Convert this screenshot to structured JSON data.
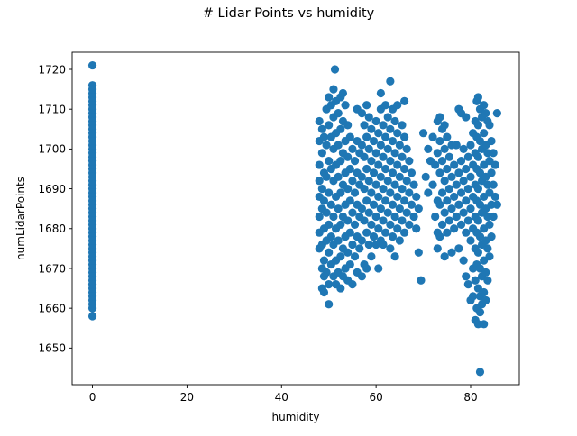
{
  "chart_data": {
    "type": "scatter",
    "title": "# Lidar Points vs humidity",
    "xlabel": "humidity",
    "ylabel": "numLidarPoints",
    "xlim": [
      -4.3,
      90.3
    ],
    "ylim": [
      1640.8,
      1724.3
    ],
    "xticks": [
      0,
      20,
      40,
      60,
      80
    ],
    "yticks": [
      1650,
      1660,
      1670,
      1680,
      1690,
      1700,
      1710,
      1720
    ],
    "color": "#1f77b4",
    "grid": false,
    "legend": "none",
    "points": [
      [
        0,
        1721
      ],
      [
        0,
        1716
      ],
      [
        0,
        1715
      ],
      [
        0,
        1714
      ],
      [
        0,
        1713
      ],
      [
        0,
        1712
      ],
      [
        0,
        1711
      ],
      [
        0,
        1710
      ],
      [
        0,
        1709
      ],
      [
        0,
        1708
      ],
      [
        0,
        1707
      ],
      [
        0,
        1706
      ],
      [
        0,
        1705
      ],
      [
        0,
        1704
      ],
      [
        0,
        1703
      ],
      [
        0,
        1702
      ],
      [
        0,
        1701
      ],
      [
        0,
        1700
      ],
      [
        0,
        1699
      ],
      [
        0,
        1698
      ],
      [
        0,
        1697
      ],
      [
        0,
        1696
      ],
      [
        0,
        1695
      ],
      [
        0,
        1694
      ],
      [
        0,
        1693
      ],
      [
        0,
        1692
      ],
      [
        0,
        1691
      ],
      [
        0,
        1690
      ],
      [
        0,
        1689
      ],
      [
        0,
        1688
      ],
      [
        0,
        1687
      ],
      [
        0,
        1686
      ],
      [
        0,
        1685
      ],
      [
        0,
        1684
      ],
      [
        0,
        1683
      ],
      [
        0,
        1682
      ],
      [
        0,
        1681
      ],
      [
        0,
        1680
      ],
      [
        0,
        1679
      ],
      [
        0,
        1678
      ],
      [
        0,
        1677
      ],
      [
        0,
        1676
      ],
      [
        0,
        1675
      ],
      [
        0,
        1674
      ],
      [
        0,
        1673
      ],
      [
        0,
        1672
      ],
      [
        0,
        1671
      ],
      [
        0,
        1670
      ],
      [
        0,
        1669
      ],
      [
        0,
        1668
      ],
      [
        0,
        1667
      ],
      [
        0,
        1666
      ],
      [
        0,
        1665
      ],
      [
        0,
        1664
      ],
      [
        0,
        1663
      ],
      [
        0,
        1662
      ],
      [
        0,
        1661
      ],
      [
        0,
        1660
      ],
      [
        0,
        1658
      ],
      [
        48,
        1707
      ],
      [
        48,
        1702
      ],
      [
        48,
        1696
      ],
      [
        48,
        1692
      ],
      [
        48,
        1688
      ],
      [
        48,
        1683
      ],
      [
        48,
        1679
      ],
      [
        48,
        1675
      ],
      [
        48.6,
        1705
      ],
      [
        48.6,
        1699
      ],
      [
        48.6,
        1690
      ],
      [
        48.6,
        1685
      ],
      [
        48.6,
        1676
      ],
      [
        48.6,
        1670
      ],
      [
        48.6,
        1665
      ],
      [
        49,
        1703
      ],
      [
        49,
        1694
      ],
      [
        49,
        1687
      ],
      [
        49,
        1680
      ],
      [
        49,
        1672
      ],
      [
        49,
        1668
      ],
      [
        49,
        1664
      ],
      [
        49.5,
        1710
      ],
      [
        49.5,
        1701
      ],
      [
        49.5,
        1693
      ],
      [
        49.5,
        1684
      ],
      [
        49.5,
        1677
      ],
      [
        49.5,
        1669
      ],
      [
        50,
        1713
      ],
      [
        50,
        1706
      ],
      [
        50,
        1697
      ],
      [
        50,
        1689
      ],
      [
        50,
        1681
      ],
      [
        50,
        1674
      ],
      [
        50,
        1666
      ],
      [
        50,
        1661
      ],
      [
        50.5,
        1711
      ],
      [
        50.5,
        1703
      ],
      [
        50.5,
        1695
      ],
      [
        50.5,
        1686
      ],
      [
        50.5,
        1678
      ],
      [
        50.5,
        1671
      ],
      [
        51,
        1715
      ],
      [
        51,
        1708
      ],
      [
        51,
        1700
      ],
      [
        51,
        1692
      ],
      [
        51,
        1683
      ],
      [
        51,
        1676
      ],
      [
        51,
        1668
      ],
      [
        51.3,
        1720
      ],
      [
        51.5,
        1712
      ],
      [
        51.5,
        1704
      ],
      [
        51.5,
        1696
      ],
      [
        51.5,
        1688
      ],
      [
        51.5,
        1680
      ],
      [
        51.5,
        1672
      ],
      [
        51.5,
        1666
      ],
      [
        52,
        1709
      ],
      [
        52,
        1701
      ],
      [
        52,
        1693
      ],
      [
        52,
        1685
      ],
      [
        52,
        1677
      ],
      [
        52,
        1669
      ],
      [
        52.5,
        1713
      ],
      [
        52.5,
        1705
      ],
      [
        52.5,
        1697
      ],
      [
        52.5,
        1689
      ],
      [
        52.5,
        1681
      ],
      [
        52.5,
        1673
      ],
      [
        52.5,
        1665
      ],
      [
        53,
        1714
      ],
      [
        53,
        1707
      ],
      [
        53,
        1699
      ],
      [
        53,
        1691
      ],
      [
        53,
        1683
      ],
      [
        53,
        1675
      ],
      [
        53,
        1668
      ],
      [
        53.5,
        1711
      ],
      [
        53.5,
        1702
      ],
      [
        53.5,
        1694
      ],
      [
        53.5,
        1686
      ],
      [
        53.5,
        1678
      ],
      [
        53.5,
        1670
      ],
      [
        54,
        1706
      ],
      [
        54,
        1698
      ],
      [
        54,
        1690
      ],
      [
        54,
        1682
      ],
      [
        54,
        1674
      ],
      [
        54,
        1667
      ],
      [
        54.5,
        1703
      ],
      [
        54.5,
        1695
      ],
      [
        54.5,
        1687
      ],
      [
        54.5,
        1679
      ],
      [
        54.5,
        1671
      ],
      [
        55,
        1700
      ],
      [
        55,
        1692
      ],
      [
        55,
        1684
      ],
      [
        55,
        1676
      ],
      [
        55,
        1666
      ],
      [
        55.5,
        1697
      ],
      [
        55.5,
        1689
      ],
      [
        55.5,
        1681
      ],
      [
        55.5,
        1673
      ],
      [
        56,
        1710
      ],
      [
        56,
        1702
      ],
      [
        56,
        1694
      ],
      [
        56,
        1686
      ],
      [
        56,
        1678
      ],
      [
        56,
        1669
      ],
      [
        56.5,
        1699
      ],
      [
        56.5,
        1691
      ],
      [
        56.5,
        1683
      ],
      [
        56.5,
        1675
      ],
      [
        57,
        1709
      ],
      [
        57,
        1701
      ],
      [
        57,
        1693
      ],
      [
        57,
        1685
      ],
      [
        57,
        1677
      ],
      [
        57,
        1668
      ],
      [
        57.5,
        1706
      ],
      [
        57.5,
        1698
      ],
      [
        57.5,
        1690
      ],
      [
        57.5,
        1682
      ],
      [
        57.5,
        1671
      ],
      [
        58,
        1711
      ],
      [
        58,
        1703
      ],
      [
        58,
        1695
      ],
      [
        58,
        1687
      ],
      [
        58,
        1679
      ],
      [
        58,
        1670
      ],
      [
        58.5,
        1708
      ],
      [
        58.5,
        1700
      ],
      [
        58.5,
        1692
      ],
      [
        58.5,
        1684
      ],
      [
        58.5,
        1676
      ],
      [
        59,
        1705
      ],
      [
        59,
        1697
      ],
      [
        59,
        1689
      ],
      [
        59,
        1681
      ],
      [
        59,
        1673
      ],
      [
        59.5,
        1702
      ],
      [
        59.5,
        1694
      ],
      [
        59.5,
        1686
      ],
      [
        59.5,
        1678
      ],
      [
        60,
        1707
      ],
      [
        60,
        1699
      ],
      [
        60,
        1691
      ],
      [
        60,
        1683
      ],
      [
        60,
        1676
      ],
      [
        60.5,
        1704
      ],
      [
        60.5,
        1696
      ],
      [
        60.5,
        1688
      ],
      [
        60.5,
        1680
      ],
      [
        60.5,
        1670
      ],
      [
        61,
        1714
      ],
      [
        61,
        1710
      ],
      [
        61,
        1701
      ],
      [
        61,
        1693
      ],
      [
        61,
        1685
      ],
      [
        61,
        1677
      ],
      [
        61.5,
        1706
      ],
      [
        61.5,
        1698
      ],
      [
        61.5,
        1690
      ],
      [
        61.5,
        1682
      ],
      [
        61.5,
        1676
      ],
      [
        62,
        1711
      ],
      [
        62,
        1703
      ],
      [
        62,
        1695
      ],
      [
        62,
        1687
      ],
      [
        62,
        1679
      ],
      [
        62.5,
        1708
      ],
      [
        62.5,
        1700
      ],
      [
        62.5,
        1692
      ],
      [
        62.5,
        1684
      ],
      [
        63,
        1717
      ],
      [
        63,
        1705
      ],
      [
        63,
        1697
      ],
      [
        63,
        1689
      ],
      [
        63,
        1681
      ],
      [
        63,
        1675
      ],
      [
        63.5,
        1710
      ],
      [
        63.5,
        1702
      ],
      [
        63.5,
        1694
      ],
      [
        63.5,
        1686
      ],
      [
        63.5,
        1678
      ],
      [
        64,
        1707
      ],
      [
        64,
        1699
      ],
      [
        64,
        1691
      ],
      [
        64,
        1683
      ],
      [
        64,
        1673
      ],
      [
        64.5,
        1711
      ],
      [
        64.5,
        1704
      ],
      [
        64.5,
        1696
      ],
      [
        64.5,
        1688
      ],
      [
        64.5,
        1680
      ],
      [
        65,
        1701
      ],
      [
        65,
        1693
      ],
      [
        65,
        1685
      ],
      [
        65,
        1677
      ],
      [
        65.5,
        1706
      ],
      [
        65.5,
        1698
      ],
      [
        65.5,
        1690
      ],
      [
        65.5,
        1682
      ],
      [
        66,
        1712
      ],
      [
        66,
        1703
      ],
      [
        66,
        1695
      ],
      [
        66,
        1687
      ],
      [
        66,
        1679
      ],
      [
        66.5,
        1700
      ],
      [
        66.5,
        1692
      ],
      [
        66.5,
        1684
      ],
      [
        67,
        1697
      ],
      [
        67,
        1689
      ],
      [
        67,
        1681
      ],
      [
        67.5,
        1694
      ],
      [
        67.5,
        1686
      ],
      [
        68,
        1691
      ],
      [
        68,
        1683
      ],
      [
        68.5,
        1688
      ],
      [
        68.5,
        1680
      ],
      [
        69,
        1685
      ],
      [
        69,
        1674
      ],
      [
        69.5,
        1667
      ],
      [
        70,
        1704
      ],
      [
        70.5,
        1693
      ],
      [
        71,
        1689
      ],
      [
        71,
        1700
      ],
      [
        71.5,
        1697
      ],
      [
        72,
        1691
      ],
      [
        72,
        1703
      ],
      [
        72.5,
        1696
      ],
      [
        72.5,
        1683
      ],
      [
        73,
        1707
      ],
      [
        73,
        1699
      ],
      [
        73,
        1687
      ],
      [
        73,
        1679
      ],
      [
        73,
        1675
      ],
      [
        73.5,
        1708
      ],
      [
        73.5,
        1702
      ],
      [
        73.5,
        1694
      ],
      [
        73.5,
        1686
      ],
      [
        73.5,
        1678
      ],
      [
        74,
        1705
      ],
      [
        74,
        1697
      ],
      [
        74,
        1689
      ],
      [
        74,
        1681
      ],
      [
        74.5,
        1706
      ],
      [
        74.5,
        1700
      ],
      [
        74.5,
        1692
      ],
      [
        74.5,
        1684
      ],
      [
        74.5,
        1673
      ],
      [
        75,
        1703
      ],
      [
        75,
        1695
      ],
      [
        75,
        1687
      ],
      [
        75,
        1679
      ],
      [
        75.5,
        1698
      ],
      [
        75.5,
        1690
      ],
      [
        75.5,
        1682
      ],
      [
        76,
        1701
      ],
      [
        76,
        1693
      ],
      [
        76,
        1685
      ],
      [
        76,
        1674
      ],
      [
        76.5,
        1696
      ],
      [
        76.5,
        1688
      ],
      [
        76.5,
        1680
      ],
      [
        77,
        1701
      ],
      [
        77,
        1691
      ],
      [
        77,
        1683
      ],
      [
        77.5,
        1710
      ],
      [
        77.5,
        1694
      ],
      [
        77.5,
        1686
      ],
      [
        77.5,
        1675
      ],
      [
        78,
        1709
      ],
      [
        78,
        1697
      ],
      [
        78,
        1689
      ],
      [
        78,
        1681
      ],
      [
        78.5,
        1700
      ],
      [
        78.5,
        1692
      ],
      [
        78.5,
        1684
      ],
      [
        78.5,
        1672
      ],
      [
        79,
        1708
      ],
      [
        79,
        1695
      ],
      [
        79,
        1687
      ],
      [
        79,
        1679
      ],
      [
        79,
        1668
      ],
      [
        79.5,
        1698
      ],
      [
        79.5,
        1690
      ],
      [
        79.5,
        1682
      ],
      [
        79.5,
        1666
      ],
      [
        80,
        1701
      ],
      [
        80,
        1693
      ],
      [
        80,
        1685
      ],
      [
        80,
        1677
      ],
      [
        80,
        1662
      ],
      [
        80.5,
        1704
      ],
      [
        80.5,
        1696
      ],
      [
        80.5,
        1688
      ],
      [
        80.5,
        1680
      ],
      [
        80.5,
        1670
      ],
      [
        80.5,
        1663
      ],
      [
        81,
        1707
      ],
      [
        81,
        1699
      ],
      [
        81,
        1691
      ],
      [
        81,
        1683
      ],
      [
        81,
        1675
      ],
      [
        81,
        1667
      ],
      [
        81,
        1657
      ],
      [
        81.3,
        1712
      ],
      [
        81.3,
        1703
      ],
      [
        81.3,
        1695
      ],
      [
        81.3,
        1687
      ],
      [
        81.3,
        1679
      ],
      [
        81.3,
        1671
      ],
      [
        81.3,
        1660
      ],
      [
        81.6,
        1713
      ],
      [
        81.6,
        1706
      ],
      [
        81.6,
        1698
      ],
      [
        81.6,
        1690
      ],
      [
        81.6,
        1682
      ],
      [
        81.6,
        1674
      ],
      [
        81.6,
        1665
      ],
      [
        81.6,
        1656
      ],
      [
        82,
        1710
      ],
      [
        82,
        1702
      ],
      [
        82,
        1694
      ],
      [
        82,
        1686
      ],
      [
        82,
        1678
      ],
      [
        82,
        1670
      ],
      [
        82,
        1663
      ],
      [
        82,
        1659
      ],
      [
        82,
        1644
      ],
      [
        82.4,
        1708
      ],
      [
        82.4,
        1700
      ],
      [
        82.4,
        1692
      ],
      [
        82.4,
        1684
      ],
      [
        82.4,
        1676
      ],
      [
        82.4,
        1668
      ],
      [
        82.4,
        1661
      ],
      [
        82.8,
        1711
      ],
      [
        82.8,
        1704
      ],
      [
        82.8,
        1696
      ],
      [
        82.8,
        1688
      ],
      [
        82.8,
        1680
      ],
      [
        82.8,
        1672
      ],
      [
        82.8,
        1664
      ],
      [
        82.8,
        1656
      ],
      [
        83.2,
        1709
      ],
      [
        83.2,
        1701
      ],
      [
        83.2,
        1693
      ],
      [
        83.2,
        1685
      ],
      [
        83.2,
        1677
      ],
      [
        83.2,
        1669
      ],
      [
        83.2,
        1662
      ],
      [
        83.6,
        1707
      ],
      [
        83.6,
        1699
      ],
      [
        83.6,
        1691
      ],
      [
        83.6,
        1683
      ],
      [
        83.6,
        1675
      ],
      [
        83.6,
        1667
      ],
      [
        84,
        1706
      ],
      [
        84,
        1697
      ],
      [
        84,
        1689
      ],
      [
        84,
        1681
      ],
      [
        84,
        1673
      ],
      [
        84.4,
        1702
      ],
      [
        84.4,
        1694
      ],
      [
        84.4,
        1686
      ],
      [
        84.4,
        1678
      ],
      [
        84.8,
        1699
      ],
      [
        84.8,
        1691
      ],
      [
        84.8,
        1683
      ],
      [
        85.2,
        1696
      ],
      [
        85.2,
        1688
      ],
      [
        85.6,
        1709
      ],
      [
        85.6,
        1686
      ]
    ]
  }
}
